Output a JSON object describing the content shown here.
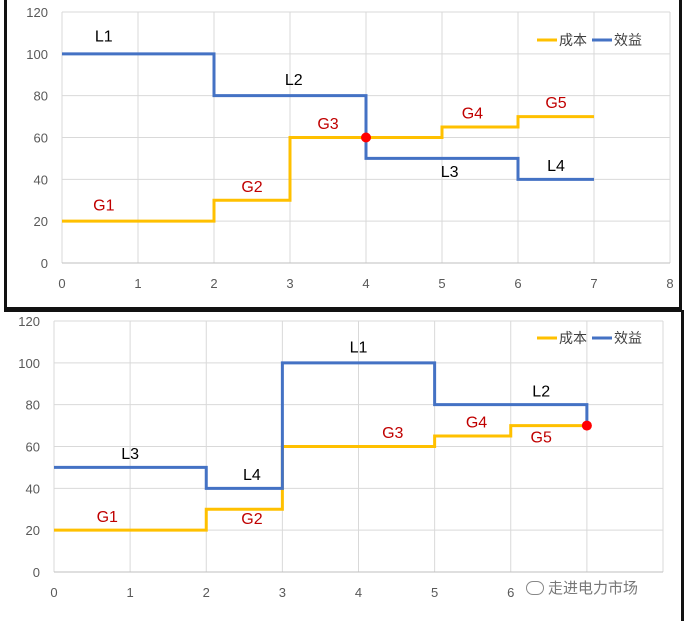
{
  "chart_data": [
    {
      "type": "line",
      "step": true,
      "xlim": [
        0,
        8
      ],
      "ylim": [
        0,
        120
      ],
      "x_ticks": [
        0,
        1,
        2,
        3,
        4,
        5,
        6,
        7,
        8
      ],
      "y_ticks": [
        0,
        20,
        40,
        60,
        80,
        100,
        120
      ],
      "grid": true,
      "legend_position": "top-right",
      "series": [
        {
          "name": "成本",
          "color": "#FFC000",
          "points": [
            [
              0,
              20
            ],
            [
              2,
              20
            ],
            [
              2,
              30
            ],
            [
              3,
              30
            ],
            [
              3,
              60
            ],
            [
              5,
              60
            ],
            [
              5,
              65
            ],
            [
              6,
              65
            ],
            [
              6,
              70
            ],
            [
              7,
              70
            ]
          ]
        },
        {
          "name": "效益",
          "color": "#4472C4",
          "points": [
            [
              0,
              100
            ],
            [
              2,
              100
            ],
            [
              2,
              80
            ],
            [
              4,
              80
            ],
            [
              4,
              50
            ],
            [
              6,
              50
            ],
            [
              6,
              40
            ],
            [
              7,
              40
            ]
          ]
        }
      ],
      "annotations": [
        {
          "text": "L1",
          "series": "效益",
          "x": 0.55,
          "y": 106
        },
        {
          "text": "L2",
          "series": "效益",
          "x": 3.05,
          "y": 85
        },
        {
          "text": "L3",
          "series": "效益",
          "x": 5.1,
          "y": 41
        },
        {
          "text": "L4",
          "series": "效益",
          "x": 6.5,
          "y": 44
        },
        {
          "text": "G1",
          "series": "成本",
          "x": 0.55,
          "y": 25
        },
        {
          "text": "G2",
          "series": "成本",
          "x": 2.5,
          "y": 34
        },
        {
          "text": "G3",
          "series": "成本",
          "x": 3.5,
          "y": 64
        },
        {
          "text": "G4",
          "series": "成本",
          "x": 5.4,
          "y": 69
        },
        {
          "text": "G5",
          "series": "成本",
          "x": 6.5,
          "y": 74
        }
      ],
      "markers": [
        {
          "x": 4,
          "y": 60,
          "color": "#FF0000"
        }
      ]
    },
    {
      "type": "line",
      "step": true,
      "xlim": [
        0,
        8
      ],
      "ylim": [
        0,
        120
      ],
      "x_ticks": [
        0,
        1,
        2,
        3,
        4,
        5,
        6
      ],
      "y_ticks": [
        0,
        20,
        40,
        60,
        80,
        100,
        120
      ],
      "grid": true,
      "legend_position": "top-right",
      "series": [
        {
          "name": "成本",
          "color": "#FFC000",
          "points": [
            [
              0,
              20
            ],
            [
              2,
              20
            ],
            [
              2,
              30
            ],
            [
              3,
              30
            ],
            [
              3,
              60
            ],
            [
              5,
              60
            ],
            [
              5,
              65
            ],
            [
              6,
              65
            ],
            [
              6,
              70
            ],
            [
              7,
              70
            ]
          ]
        },
        {
          "name": "效益",
          "color": "#4472C4",
          "points": [
            [
              0,
              50
            ],
            [
              2,
              50
            ],
            [
              2,
              40
            ],
            [
              3,
              40
            ],
            [
              3,
              100
            ],
            [
              5,
              100
            ],
            [
              5,
              80
            ],
            [
              7,
              80
            ],
            [
              7,
              70
            ]
          ]
        }
      ],
      "annotations": [
        {
          "text": "L1",
          "series": "效益",
          "x": 4.0,
          "y": 105
        },
        {
          "text": "L2",
          "series": "效益",
          "x": 6.4,
          "y": 84
        },
        {
          "text": "L3",
          "series": "效益",
          "x": 1.0,
          "y": 54
        },
        {
          "text": "L4",
          "series": "效益",
          "x": 2.6,
          "y": 44
        },
        {
          "text": "G1",
          "series": "成本",
          "x": 0.7,
          "y": 24
        },
        {
          "text": "G2",
          "series": "成本",
          "x": 2.6,
          "y": 23
        },
        {
          "text": "G3",
          "series": "成本",
          "x": 4.45,
          "y": 64
        },
        {
          "text": "G4",
          "series": "成本",
          "x": 5.55,
          "y": 69
        },
        {
          "text": "G5",
          "series": "成本",
          "x": 6.4,
          "y": 62
        }
      ],
      "markers": [
        {
          "x": 7,
          "y": 70,
          "color": "#FF0000"
        }
      ]
    }
  ],
  "watermark": {
    "text": "走进电力市场",
    "icon": "wechat-icon"
  }
}
